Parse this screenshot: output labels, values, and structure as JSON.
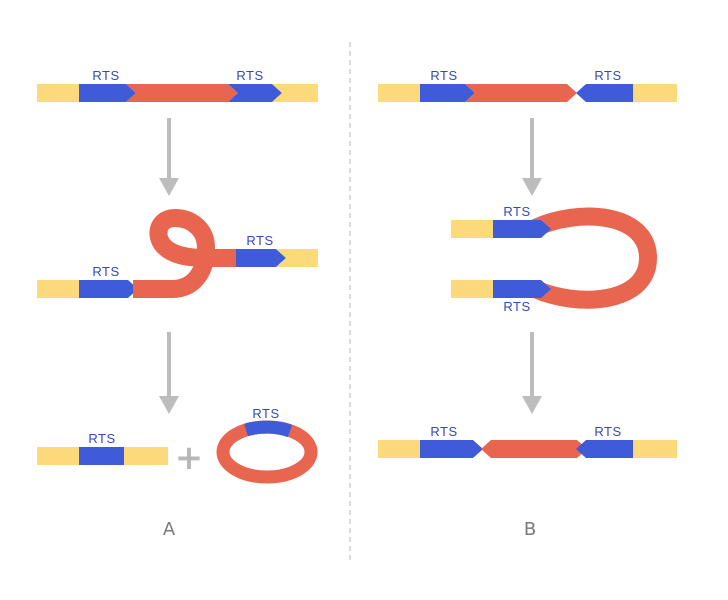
{
  "colors": {
    "flank": "#FCD97A",
    "rts": "#3F5BD8",
    "insert": "#E8654F",
    "arrow": "#BDBDBD",
    "divider": "#C4C4C4",
    "label": "#3347C2",
    "panel_label": "#7A7A7A",
    "plus": "#B8B8B8"
  },
  "panels": [
    {
      "label": "A",
      "steps": [
        {
          "id": "start",
          "rts_labels": [
            "RTS",
            "RTS"
          ]
        },
        {
          "id": "loop",
          "rts_labels": [
            "RTS",
            "RTS"
          ]
        },
        {
          "id": "excision",
          "rts_labels": [
            "RTS",
            "RTS"
          ],
          "operator": "+"
        }
      ]
    },
    {
      "label": "B",
      "steps": [
        {
          "id": "start",
          "rts_labels": [
            "RTS",
            "RTS"
          ]
        },
        {
          "id": "hairpin",
          "rts_labels": [
            "RTS",
            "RTS"
          ]
        },
        {
          "id": "inversion",
          "rts_labels": [
            "RTS",
            "RTS"
          ]
        }
      ]
    }
  ]
}
